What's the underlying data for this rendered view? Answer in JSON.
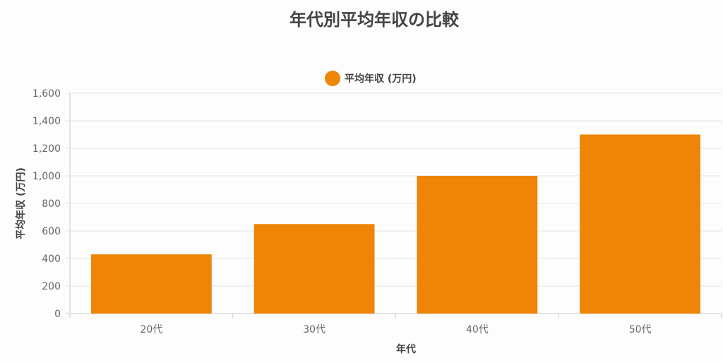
{
  "chart_data": {
    "type": "bar",
    "title": "年代別平均年収の比較",
    "xlabel": "年代",
    "ylabel": "平均年収 (万円)",
    "categories": [
      "20代",
      "30代",
      "40代",
      "50代"
    ],
    "series": [
      {
        "name": "平均年収 (万円)",
        "values": [
          430,
          650,
          1000,
          1300
        ],
        "color": "#ee8506"
      }
    ],
    "ylim": [
      0,
      1600
    ],
    "yticks": [
      "0",
      "200",
      "400",
      "600",
      "800",
      "1,000",
      "1,200",
      "1,400",
      "1,600"
    ],
    "grid": true,
    "legend": "top-center"
  }
}
